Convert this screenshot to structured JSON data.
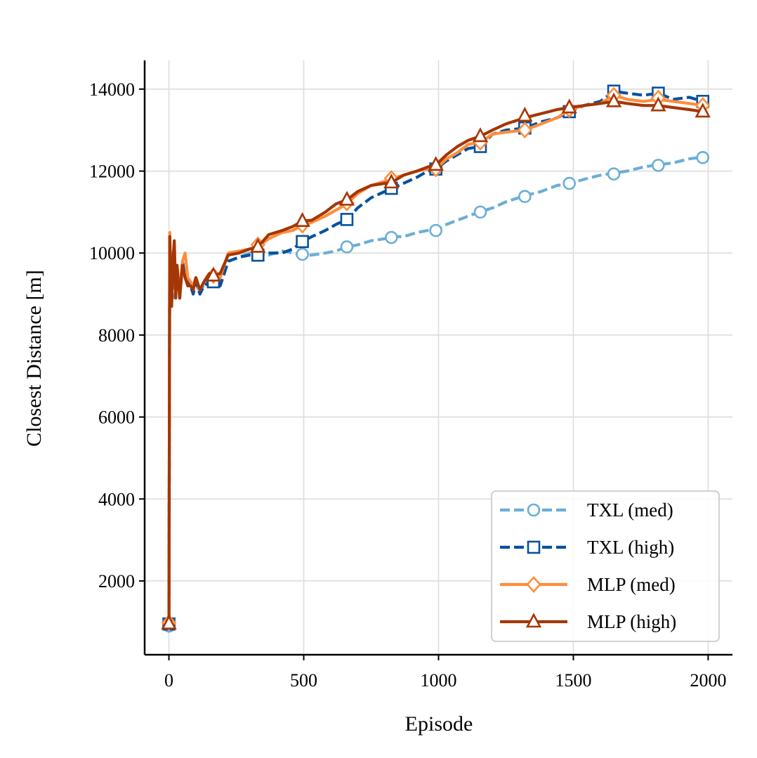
{
  "chart_data": {
    "type": "line",
    "title": "",
    "xlabel": "Episode",
    "ylabel": "Closest Distance [m]",
    "xlim": [
      -90,
      2090
    ],
    "ylim": [
      200,
      14700
    ],
    "xticks": [
      0,
      500,
      1000,
      1500,
      2000
    ],
    "xtick_labels": [
      "0",
      "500",
      "1000",
      "1500",
      "2000"
    ],
    "yticks": [
      2000,
      4000,
      6000,
      8000,
      10000,
      12000,
      14000
    ],
    "ytick_labels": [
      "2000",
      "4000",
      "6000",
      "8000",
      "10000",
      "12000",
      "14000"
    ],
    "grid": true,
    "legend_position": "bottom-right",
    "series": [
      {
        "name": "TXL (med)",
        "color": "#6baed6",
        "dash": "dashed",
        "marker": "circle",
        "x": [
          0,
          3,
          6,
          10,
          15,
          20,
          25,
          30,
          40,
          50,
          60,
          70,
          80,
          90,
          100,
          115,
          130,
          150,
          165,
          190,
          220,
          260,
          300,
          330,
          370,
          420,
          460,
          500,
          530,
          580,
          620,
          660,
          700,
          750,
          800,
          830,
          870,
          920,
          960,
          990,
          1030,
          1070,
          1110,
          1150,
          1200,
          1250,
          1320,
          1380,
          1440,
          1490,
          1540,
          1600,
          1650,
          1700,
          1760,
          1810,
          1870,
          1930,
          1990
        ],
        "y": [
          900,
          9500,
          10100,
          9400,
          8900,
          9900,
          9100,
          9600,
          9000,
          9800,
          9400,
          9300,
          9300,
          9100,
          9300,
          9000,
          9250,
          9350,
          9300,
          9200,
          9800,
          9900,
          10000,
          10000,
          9950,
          10050,
          10000,
          9950,
          9950,
          10000,
          10050,
          10150,
          10200,
          10300,
          10350,
          10400,
          10400,
          10500,
          10550,
          10550,
          10700,
          10800,
          10900,
          11000,
          11100,
          11250,
          11400,
          11500,
          11650,
          11700,
          11800,
          11900,
          11950,
          12000,
          12100,
          12150,
          12200,
          12300,
          12350
        ],
        "marker_x": [
          0,
          165,
          330,
          495,
          660,
          825,
          990,
          1155,
          1320,
          1485,
          1650,
          1815,
          1980
        ],
        "marker_y": [
          900,
          9380,
          10000,
          9970,
          10150,
          10380,
          10550,
          11000,
          11380,
          11700,
          11930,
          12140,
          12330
        ]
      },
      {
        "name": "TXL (high)",
        "color": "#08519c",
        "dash": "dashed",
        "marker": "square",
        "x": [
          0,
          3,
          6,
          10,
          15,
          20,
          25,
          30,
          40,
          50,
          60,
          70,
          80,
          90,
          100,
          115,
          130,
          150,
          165,
          190,
          220,
          260,
          300,
          330,
          370,
          420,
          460,
          495,
          530,
          580,
          620,
          660,
          700,
          750,
          800,
          830,
          870,
          920,
          960,
          990,
          1030,
          1070,
          1110,
          1155,
          1200,
          1250,
          1320,
          1380,
          1440,
          1485,
          1540,
          1600,
          1650,
          1700,
          1760,
          1815,
          1870,
          1930,
          1980
        ],
        "y": [
          950,
          10300,
          9800,
          9000,
          9600,
          10100,
          9000,
          9600,
          8900,
          9800,
          9400,
          9300,
          9200,
          9000,
          9300,
          9000,
          9200,
          9300,
          9250,
          9200,
          9800,
          9900,
          9950,
          9950,
          10000,
          10000,
          10100,
          10280,
          10400,
          10550,
          10700,
          10820,
          11100,
          11350,
          11500,
          11580,
          11700,
          11850,
          12000,
          12050,
          12250,
          12400,
          12550,
          12600,
          12900,
          13000,
          13050,
          13200,
          13300,
          13450,
          13600,
          13700,
          13950,
          13900,
          13850,
          13900,
          13750,
          13800,
          13700
        ],
        "marker_x": [
          0,
          165,
          330,
          495,
          660,
          825,
          990,
          1155,
          1320,
          1485,
          1650,
          1815,
          1980
        ],
        "marker_y": [
          950,
          9300,
          9950,
          10280,
          10820,
          11580,
          12050,
          12600,
          13050,
          13450,
          13950,
          13900,
          13700
        ]
      },
      {
        "name": "MLP (med)",
        "color": "#fd8d3c",
        "dash": "solid",
        "marker": "diamond",
        "x": [
          0,
          3,
          6,
          10,
          15,
          20,
          25,
          30,
          40,
          50,
          60,
          70,
          80,
          90,
          100,
          115,
          130,
          150,
          165,
          190,
          220,
          260,
          300,
          330,
          370,
          420,
          460,
          495,
          530,
          580,
          620,
          660,
          700,
          750,
          800,
          825,
          870,
          920,
          960,
          990,
          1030,
          1070,
          1110,
          1155,
          1200,
          1250,
          1320,
          1380,
          1440,
          1485,
          1540,
          1600,
          1650,
          1700,
          1760,
          1815,
          1870,
          1930,
          1980
        ],
        "y": [
          980,
          10500,
          9800,
          9200,
          9700,
          10200,
          9100,
          9700,
          9000,
          9800,
          10000,
          9400,
          9300,
          9200,
          9400,
          9100,
          9300,
          9500,
          9450,
          9400,
          10000,
          10050,
          10100,
          10150,
          10350,
          10500,
          10550,
          10680,
          10750,
          10900,
          11050,
          11200,
          11450,
          11650,
          11750,
          11820,
          11900,
          12000,
          12050,
          12050,
          12300,
          12450,
          12650,
          12700,
          12900,
          12950,
          13000,
          13150,
          13300,
          13500,
          13600,
          13650,
          13850,
          13750,
          13700,
          13750,
          13700,
          13650,
          13600
        ],
        "marker_x": [
          0,
          165,
          330,
          495,
          660,
          825,
          990,
          1155,
          1320,
          1485,
          1650,
          1815,
          1980
        ],
        "marker_y": [
          980,
          9450,
          10200,
          10680,
          11220,
          11820,
          12050,
          12700,
          13000,
          13500,
          13850,
          13780,
          13600
        ]
      },
      {
        "name": "MLP (high)",
        "color": "#a63603",
        "dash": "solid",
        "marker": "triangle",
        "x": [
          0,
          3,
          6,
          10,
          15,
          20,
          25,
          30,
          40,
          50,
          60,
          70,
          80,
          90,
          100,
          115,
          130,
          150,
          165,
          190,
          220,
          260,
          300,
          330,
          370,
          420,
          460,
          495,
          530,
          580,
          620,
          660,
          700,
          750,
          800,
          825,
          870,
          920,
          960,
          990,
          1030,
          1070,
          1110,
          1155,
          1200,
          1250,
          1320,
          1380,
          1440,
          1485,
          1540,
          1600,
          1650,
          1700,
          1760,
          1815,
          1870,
          1930,
          1980
        ],
        "y": [
          960,
          10400,
          9500,
          8700,
          9800,
          10300,
          8900,
          9700,
          8900,
          9700,
          9400,
          9200,
          9200,
          9100,
          9400,
          9100,
          9300,
          9500,
          9450,
          9500,
          9950,
          10000,
          10100,
          10150,
          10450,
          10550,
          10650,
          10780,
          10800,
          11000,
          11200,
          11300,
          11500,
          11650,
          11700,
          11720,
          11900,
          12000,
          12100,
          12150,
          12400,
          12600,
          12750,
          12850,
          13000,
          13150,
          13300,
          13400,
          13500,
          13550,
          13600,
          13650,
          13700,
          13650,
          13600,
          13600,
          13550,
          13500,
          13450
        ],
        "marker_x": [
          0,
          165,
          330,
          495,
          660,
          825,
          990,
          1155,
          1320,
          1485,
          1650,
          1815,
          1980
        ],
        "marker_y": [
          960,
          9450,
          10150,
          10780,
          11300,
          11720,
          12150,
          12850,
          13350,
          13550,
          13700,
          13600,
          13450
        ]
      }
    ]
  }
}
